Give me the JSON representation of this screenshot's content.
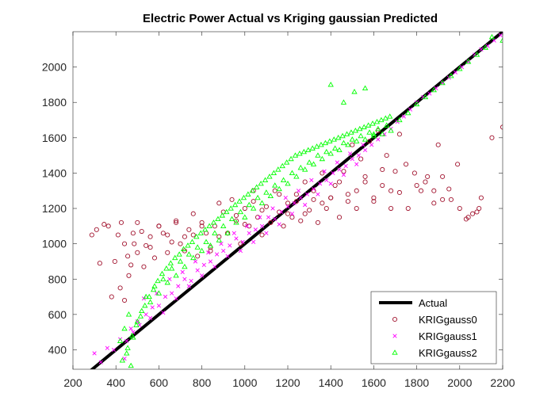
{
  "chart_data": {
    "type": "scatter",
    "title": "Electric Power Actual vs Kriging gaussian Predicted",
    "xlabel": "",
    "ylabel": "",
    "xlim": [
      200,
      2200
    ],
    "ylim": [
      290,
      2200
    ],
    "xticks": [
      200,
      400,
      600,
      800,
      1000,
      1200,
      1400,
      1600,
      1800,
      2000,
      2200
    ],
    "yticks": [
      400,
      600,
      800,
      1000,
      1200,
      1400,
      1600,
      1800,
      2000
    ],
    "grid": false,
    "legend_position": "bottom-right",
    "series": [
      {
        "name": "Actual",
        "kind": "line",
        "color": "#000000",
        "x": [
          285,
          2200
        ],
        "y": [
          285,
          2200
        ]
      },
      {
        "name": "KRIGgauss0",
        "kind": "marker",
        "marker": "circle",
        "color": "#a2142f",
        "x": [
          288,
          310,
          325,
          345,
          365,
          380,
          395,
          410,
          425,
          440,
          455,
          470,
          485,
          500,
          520,
          540,
          560,
          580,
          600,
          620,
          640,
          660,
          680,
          700,
          720,
          740,
          760,
          780,
          800,
          820,
          840,
          860,
          880,
          900,
          920,
          940,
          960,
          980,
          1000,
          1020,
          1040,
          1060,
          1080,
          1100,
          1120,
          1140,
          1160,
          1180,
          1200,
          1220,
          1240,
          1260,
          1280,
          1300,
          1320,
          1340,
          1360,
          1380,
          1400,
          1420,
          1440,
          1460,
          1480,
          1500,
          1520,
          1540,
          1560,
          1580,
          1600,
          1620,
          1640,
          1660,
          1680,
          1700,
          1720,
          1750,
          1790,
          1820,
          1850,
          1880,
          1900,
          1920,
          1950,
          1990,
          2030,
          2060,
          2090,
          2100,
          2150,
          2200,
          420,
          440,
          460,
          480,
          500,
          530,
          560,
          600,
          640,
          680,
          720,
          760,
          800,
          840,
          880,
          920,
          960,
          1000,
          1040,
          1080,
          1120,
          1160,
          1200,
          1240,
          1280,
          1320,
          1360,
          1400,
          1440,
          1480,
          1520,
          1560,
          1600,
          1640,
          1680,
          1720,
          1760,
          1800,
          1840,
          1880,
          1920,
          1960,
          2000,
          2040,
          2080
        ],
        "y": [
          1050,
          1080,
          890,
          1110,
          1100,
          700,
          900,
          1050,
          1120,
          1000,
          930,
          880,
          1000,
          950,
          1070,
          990,
          1040,
          920,
          1100,
          1060,
          950,
          1010,
          1120,
          1000,
          960,
          1080,
          1050,
          930,
          1120,
          1060,
          980,
          1100,
          1040,
          1180,
          1060,
          1250,
          1130,
          1000,
          1200,
          1100,
          1300,
          1150,
          1050,
          1210,
          1120,
          1300,
          1180,
          1100,
          1230,
          1150,
          1280,
          1130,
          1350,
          1190,
          1250,
          1120,
          1400,
          1200,
          1260,
          1330,
          1150,
          1410,
          1240,
          1560,
          1300,
          1480,
          1350,
          1580,
          1260,
          1640,
          1330,
          1500,
          1200,
          1410,
          1620,
          1450,
          1400,
          1300,
          1380,
          1230,
          1560,
          1250,
          1310,
          1450,
          1140,
          1170,
          1200,
          1260,
          1600,
          1660,
          750,
          680,
          820,
          1060,
          1120,
          870,
          980,
          1100,
          1050,
          1130,
          1040,
          1170,
          1100,
          960,
          1230,
          1060,
          1160,
          1110,
          1240,
          1190,
          1120,
          1280,
          1170,
          1240,
          1170,
          1300,
          1230,
          1260,
          1350,
          1280,
          1200,
          1380,
          1240,
          1420,
          1300,
          1290,
          1200,
          1330,
          1350,
          1300,
          1380,
          1250,
          1200,
          1150,
          1180
        ]
      },
      {
        "name": "KRIGgauss1",
        "kind": "marker",
        "marker": "x",
        "color": "#ff00ff",
        "x": [
          300,
          330,
          360,
          390,
          420,
          450,
          480,
          510,
          540,
          570,
          600,
          630,
          660,
          690,
          720,
          750,
          780,
          810,
          840,
          870,
          900,
          930,
          960,
          990,
          1020,
          1050,
          1080,
          1110,
          1140,
          1170,
          1200,
          1230,
          1260,
          1290,
          1320,
          1350,
          1380,
          1410,
          1440,
          1470,
          1500,
          1530,
          1560,
          1590,
          1620,
          1650,
          1680,
          1710,
          1740,
          1770,
          1800,
          1830,
          1860,
          1890,
          1920,
          1950,
          1980,
          2010,
          2040,
          2070,
          2100,
          2130,
          2160,
          2190,
          440,
          470,
          500,
          530,
          560,
          590,
          620,
          650,
          680,
          710,
          740,
          770,
          800,
          830,
          860,
          890,
          920,
          950,
          980,
          1010,
          1040,
          1070,
          1100,
          1130,
          1160,
          1190,
          1220,
          1250,
          1280,
          1310,
          1340,
          1370,
          1400,
          1430,
          1460,
          1490,
          1520,
          1550
        ],
        "y": [
          380,
          330,
          410,
          400,
          460,
          450,
          500,
          540,
          600,
          640,
          650,
          700,
          720,
          760,
          800,
          790,
          850,
          880,
          900,
          940,
          960,
          990,
          1030,
          1010,
          1060,
          1080,
          1100,
          1150,
          1140,
          1180,
          1210,
          1230,
          1260,
          1280,
          1310,
          1340,
          1360,
          1400,
          1420,
          1440,
          1480,
          1500,
          1530,
          1560,
          1590,
          1620,
          1650,
          1690,
          1720,
          1760,
          1800,
          1830,
          1850,
          1880,
          1910,
          1940,
          1970,
          2000,
          2030,
          2070,
          2100,
          2120,
          2150,
          2180,
          350,
          520,
          560,
          690,
          580,
          720,
          610,
          800,
          690,
          840,
          760,
          900,
          820,
          950,
          870,
          1000,
          930,
          1060,
          960,
          1100,
          1010,
          1150,
          1060,
          1200,
          1110,
          1260,
          1170,
          1300,
          1220,
          1360,
          1280,
          1410,
          1340,
          1460,
          1390,
          1510,
          1450,
          1560
        ]
      },
      {
        "name": "KRIGgauss2",
        "kind": "marker",
        "marker": "triangle",
        "color": "#00ff00",
        "x": [
          420,
          440,
          450,
          460,
          470,
          480,
          500,
          520,
          540,
          560,
          580,
          600,
          620,
          640,
          660,
          680,
          700,
          720,
          740,
          760,
          780,
          800,
          820,
          840,
          860,
          880,
          900,
          920,
          940,
          960,
          980,
          1000,
          1020,
          1040,
          1060,
          1080,
          1100,
          1120,
          1140,
          1160,
          1180,
          1200,
          1220,
          1240,
          1260,
          1280,
          1300,
          1320,
          1340,
          1360,
          1380,
          1400,
          1420,
          1440,
          1460,
          1480,
          1500,
          1520,
          1540,
          1560,
          1580,
          1600,
          1620,
          1640,
          1660,
          1680,
          1720,
          1760,
          1800,
          1840,
          1880,
          1920,
          1960,
          2000,
          2040,
          2080,
          2120,
          2150,
          2200,
          430,
          455,
          475,
          495,
          515,
          535,
          555,
          575,
          595,
          615,
          635,
          655,
          675,
          695,
          715,
          735,
          755,
          775,
          795,
          815,
          835,
          855,
          875,
          895,
          915,
          935,
          955,
          975,
          995,
          1015,
          1035,
          1055,
          1075,
          1095,
          1115,
          1135,
          1155,
          1175,
          1195,
          1215,
          1235,
          1255,
          1275,
          1295,
          1315,
          1335,
          1355,
          1375,
          1395,
          1415,
          1435,
          1455,
          1475,
          1495,
          1515,
          1535,
          1555,
          1575,
          1595,
          1615,
          1635,
          1655,
          1675,
          1400,
          1460,
          1510,
          1560,
          1600
        ],
        "y": [
          450,
          520,
          380,
          600,
          310,
          470,
          560,
          620,
          700,
          670,
          760,
          720,
          800,
          780,
          860,
          820,
          900,
          870,
          940,
          920,
          980,
          960,
          1010,
          990,
          1060,
          1020,
          1100,
          1060,
          1140,
          1120,
          1180,
          1150,
          1220,
          1200,
          1260,
          1230,
          1290,
          1270,
          1330,
          1310,
          1360,
          1340,
          1400,
          1380,
          1430,
          1420,
          1460,
          1450,
          1500,
          1480,
          1520,
          1510,
          1540,
          1530,
          1570,
          1560,
          1590,
          1580,
          1610,
          1590,
          1630,
          1610,
          1650,
          1620,
          1670,
          1640,
          1700,
          1740,
          1790,
          1830,
          1870,
          1910,
          1950,
          1990,
          2030,
          2070,
          2110,
          2170,
          2150,
          340,
          410,
          480,
          540,
          590,
          650,
          700,
          740,
          790,
          830,
          860,
          890,
          920,
          940,
          970,
          990,
          1010,
          1040,
          1060,
          1080,
          1100,
          1120,
          1140,
          1160,
          1180,
          1200,
          1220,
          1240,
          1260,
          1280,
          1300,
          1320,
          1340,
          1360,
          1380,
          1400,
          1420,
          1440,
          1460,
          1480,
          1500,
          1510,
          1520,
          1530,
          1540,
          1550,
          1560,
          1570,
          1580,
          1590,
          1600,
          1610,
          1620,
          1630,
          1640,
          1650,
          1660,
          1670,
          1680,
          1690,
          1700,
          1710,
          1720,
          1900,
          1800,
          1860,
          1880,
          1620
        ]
      }
    ]
  }
}
